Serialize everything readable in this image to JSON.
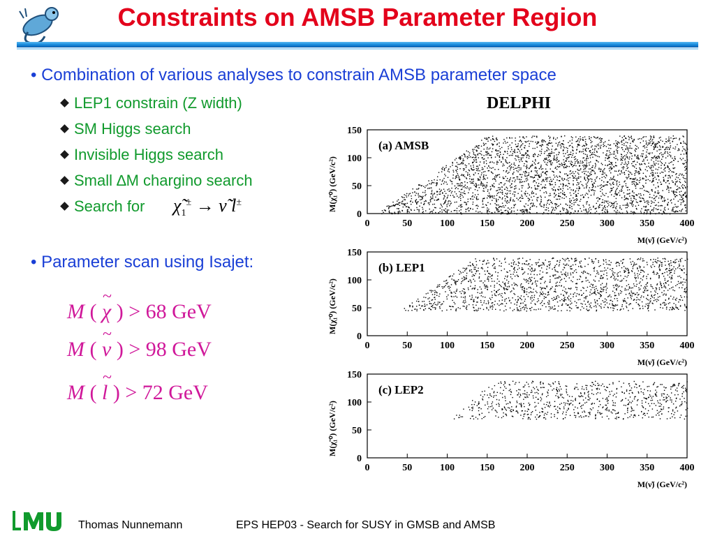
{
  "title": "Constraints on AMSB Parameter Region",
  "bullets": [
    "Combination of various analyses to constrain AMSB parameter space",
    "Parameter scan using Isajet:"
  ],
  "sub_items": [
    "LEP1 constrain (Z width)",
    "SM Higgs search",
    "Invisible Higgs search",
    "Small ∆M chargino search",
    "Search for"
  ],
  "formulas": [
    {
      "lhs": "M",
      "particle": "χ",
      "rhs": "> 68 GeV"
    },
    {
      "lhs": "M",
      "particle": "ν",
      "rhs": "> 98 GeV"
    },
    {
      "lhs": "M",
      "particle": "l",
      "rhs": "> 72 GeV"
    }
  ],
  "figure": {
    "experiment": "DELPHI",
    "panels": [
      {
        "label": "(a)   AMSB",
        "ymin_region": 0
      },
      {
        "label": "(b)   LEP1",
        "ymin_region": 45
      },
      {
        "label": "(c)   LEP2",
        "ymin_region": 70
      }
    ],
    "y_ticks": [
      "0",
      "50",
      "100",
      "150"
    ],
    "x_ticks": [
      "0",
      "50",
      "100",
      "150",
      "200",
      "250",
      "300",
      "350",
      "400"
    ],
    "y_label": "M(χ̃₁⁰) (GeV/c²)",
    "x_label": "M(ν̃) (GeV/c²)"
  },
  "footer": {
    "logo": "LMU",
    "author": "Thomas Nunnemann",
    "event": "EPS HEP03 -  Search for SUSY in GMSB and AMSB"
  }
}
